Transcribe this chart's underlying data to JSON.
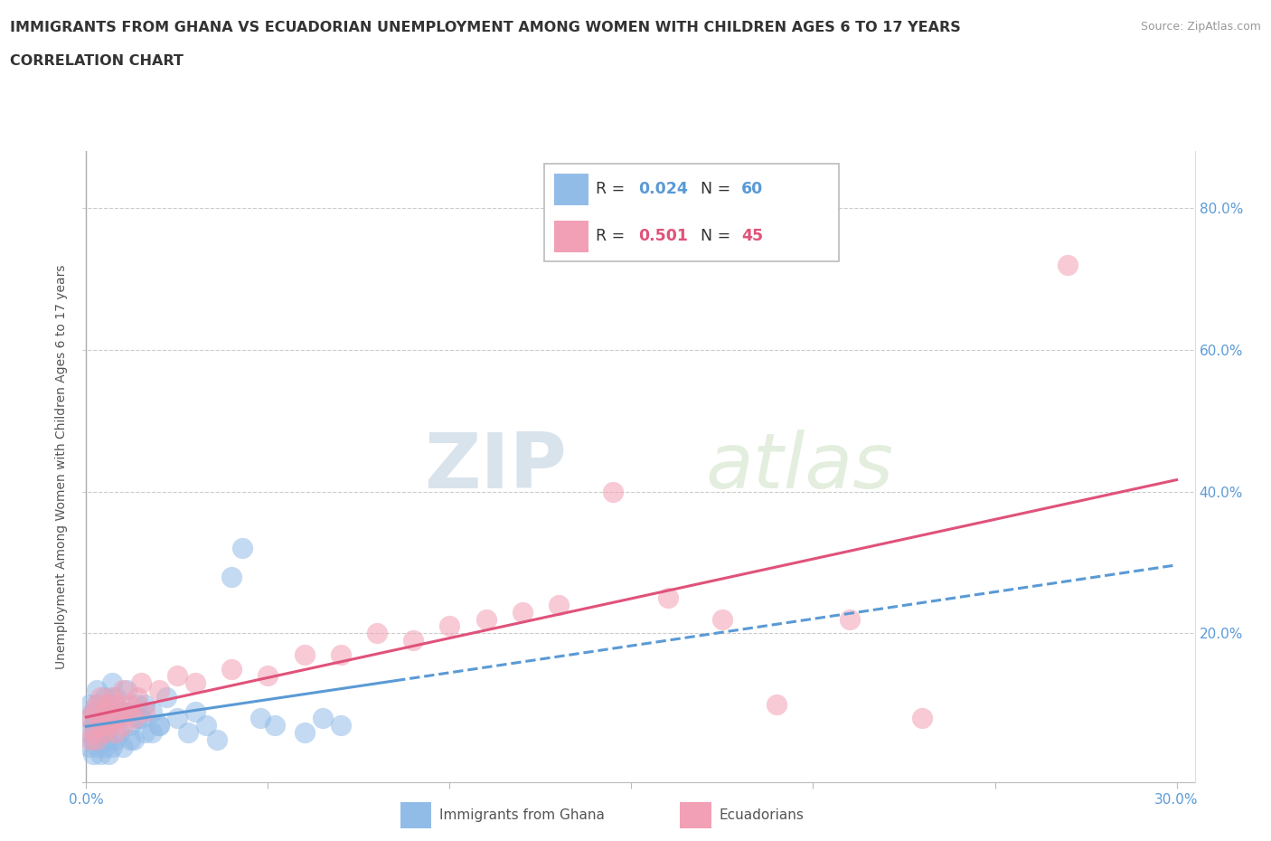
{
  "title_line1": "IMMIGRANTS FROM GHANA VS ECUADORIAN UNEMPLOYMENT AMONG WOMEN WITH CHILDREN AGES 6 TO 17 YEARS",
  "title_line2": "CORRELATION CHART",
  "source_text": "Source: ZipAtlas.com",
  "ylabel": "Unemployment Among Women with Children Ages 6 to 17 years",
  "xlim": [
    -0.001,
    0.305
  ],
  "ylim": [
    -0.01,
    0.88
  ],
  "xtick_positions": [
    0.0,
    0.05,
    0.1,
    0.15,
    0.2,
    0.25,
    0.3
  ],
  "ytick_positions": [
    0.0,
    0.2,
    0.4,
    0.6,
    0.8
  ],
  "ytick_labels_right": [
    "",
    "20.0%",
    "40.0%",
    "60.0%",
    "80.0%"
  ],
  "ghana_R": "0.024",
  "ghana_N": "60",
  "ecuador_R": "0.501",
  "ecuador_N": "45",
  "ghana_color": "#92bce8",
  "ecuador_color": "#f2a0b5",
  "ghana_line_color": "#5a9ad5",
  "ecuador_line_color": "#e0527a",
  "watermark_zip": "ZIP",
  "watermark_atlas": "atlas",
  "ghana_scatter_x": [
    0.001,
    0.001,
    0.001,
    0.001,
    0.002,
    0.002,
    0.002,
    0.002,
    0.003,
    0.003,
    0.003,
    0.003,
    0.003,
    0.004,
    0.004,
    0.004,
    0.004,
    0.005,
    0.005,
    0.005,
    0.005,
    0.006,
    0.006,
    0.006,
    0.006,
    0.007,
    0.007,
    0.008,
    0.008,
    0.008,
    0.009,
    0.01,
    0.01,
    0.011,
    0.012,
    0.013,
    0.014,
    0.015,
    0.016,
    0.018,
    0.02,
    0.022,
    0.025,
    0.028,
    0.03,
    0.033,
    0.036,
    0.04,
    0.043,
    0.048,
    0.052,
    0.06,
    0.065,
    0.07,
    0.01,
    0.012,
    0.014,
    0.016,
    0.018,
    0.02
  ],
  "ghana_scatter_y": [
    0.04,
    0.06,
    0.08,
    0.1,
    0.03,
    0.05,
    0.07,
    0.09,
    0.04,
    0.06,
    0.08,
    0.1,
    0.12,
    0.03,
    0.05,
    0.07,
    0.09,
    0.04,
    0.06,
    0.08,
    0.11,
    0.03,
    0.05,
    0.07,
    0.1,
    0.04,
    0.13,
    0.05,
    0.08,
    0.11,
    0.06,
    0.04,
    0.09,
    0.12,
    0.07,
    0.05,
    0.1,
    0.08,
    0.06,
    0.09,
    0.07,
    0.11,
    0.08,
    0.06,
    0.09,
    0.07,
    0.05,
    0.28,
    0.32,
    0.08,
    0.07,
    0.06,
    0.08,
    0.07,
    0.09,
    0.05,
    0.08,
    0.1,
    0.06,
    0.07
  ],
  "ecuador_scatter_x": [
    0.001,
    0.001,
    0.002,
    0.002,
    0.003,
    0.003,
    0.004,
    0.004,
    0.005,
    0.005,
    0.006,
    0.006,
    0.007,
    0.007,
    0.008,
    0.008,
    0.009,
    0.01,
    0.01,
    0.011,
    0.012,
    0.013,
    0.014,
    0.015,
    0.016,
    0.02,
    0.025,
    0.03,
    0.04,
    0.05,
    0.06,
    0.07,
    0.08,
    0.09,
    0.1,
    0.11,
    0.12,
    0.13,
    0.145,
    0.16,
    0.175,
    0.19,
    0.21,
    0.23,
    0.27
  ],
  "ecuador_scatter_y": [
    0.05,
    0.08,
    0.06,
    0.09,
    0.05,
    0.1,
    0.07,
    0.11,
    0.06,
    0.09,
    0.07,
    0.1,
    0.08,
    0.11,
    0.06,
    0.1,
    0.08,
    0.07,
    0.12,
    0.09,
    0.1,
    0.08,
    0.11,
    0.13,
    0.09,
    0.12,
    0.14,
    0.13,
    0.15,
    0.14,
    0.17,
    0.17,
    0.2,
    0.19,
    0.21,
    0.22,
    0.23,
    0.24,
    0.4,
    0.25,
    0.22,
    0.1,
    0.22,
    0.08,
    0.72
  ]
}
